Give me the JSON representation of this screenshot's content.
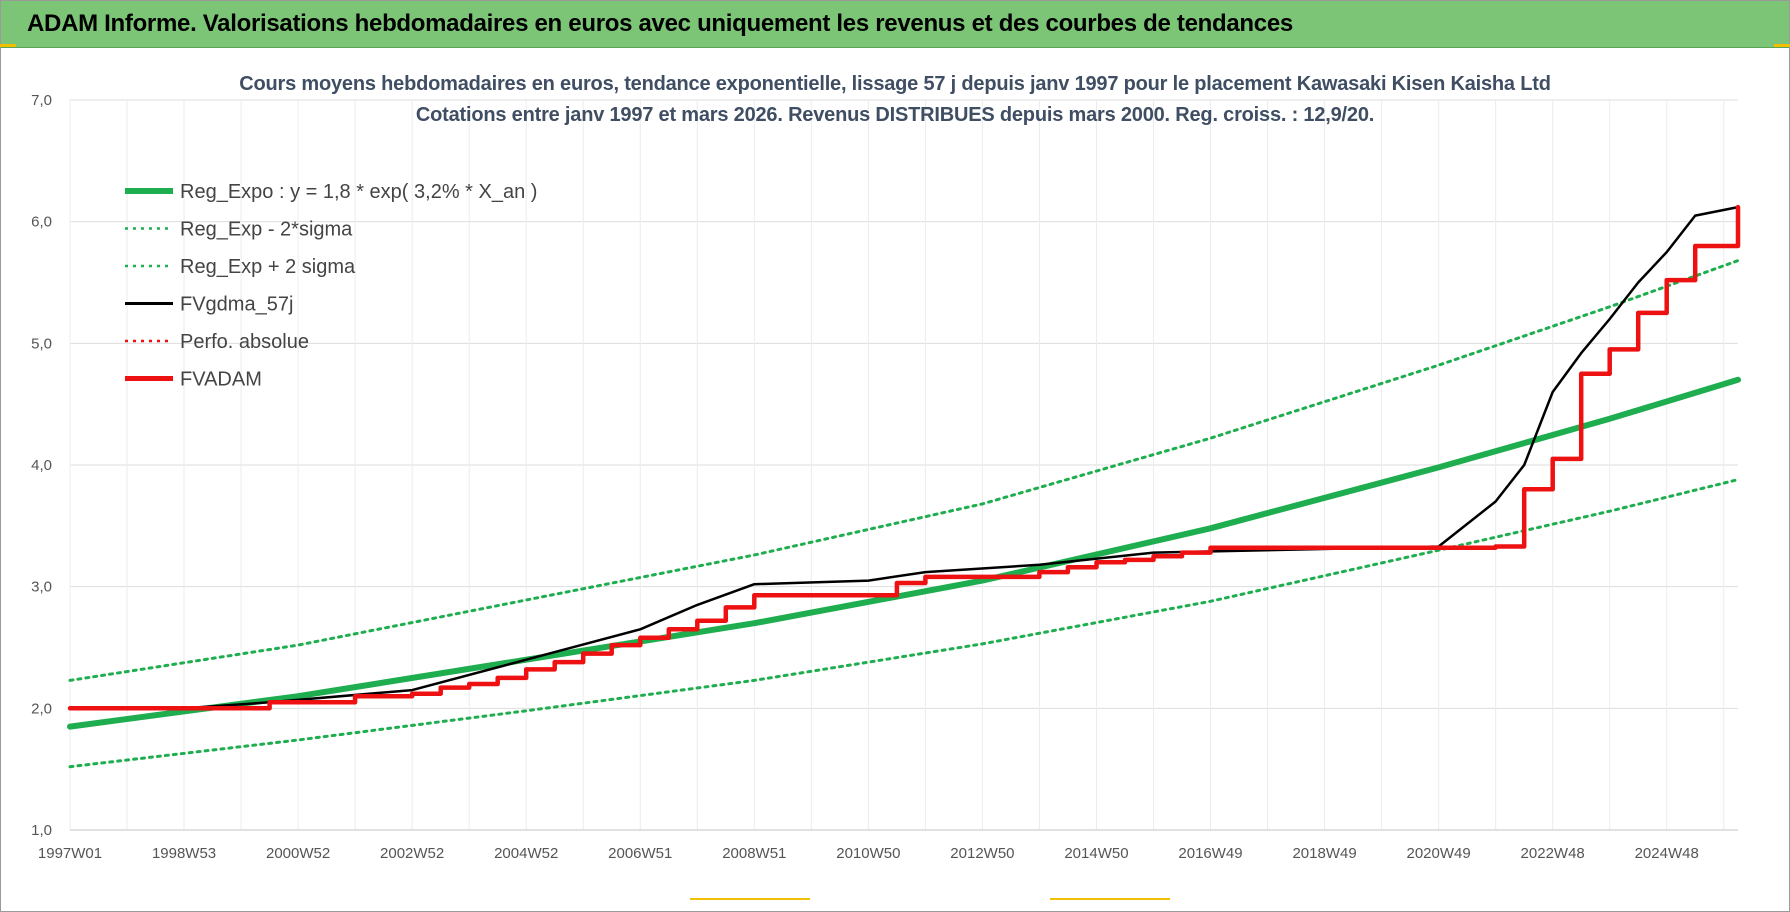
{
  "banner": {
    "title": "ADAM Informe. Valorisations hebdomadaires en euros avec uniquement les revenus et des courbes de tendances"
  },
  "colors": {
    "banner_bg": "#7cc576",
    "reg": "#1fae4f",
    "black": "#000000",
    "red": "#ee1111",
    "grid": "#dddddd"
  },
  "chart_data": {
    "type": "line",
    "title": "Cours moyens hebdomadaires en euros, tendance exponentielle, lissage 57 j depuis janv 1997  pour le placement Kawasaki Kisen Kaisha Ltd",
    "subtitle": "Cotations entre janv 1997 et mars 2026. Revenus DISTRIBUES depuis mars 2000. Reg. croiss. : 12,9/20.",
    "x_range": [
      1997.0,
      2026.25
    ],
    "ylim": [
      1.0,
      7.0
    ],
    "y_ticks": [
      "1,0",
      "2,0",
      "3,0",
      "4,0",
      "5,0",
      "6,0",
      "7,0"
    ],
    "x_ticks": [
      {
        "label": "1997W01",
        "x": 1997.0
      },
      {
        "label": "1998W53",
        "x": 1999.0
      },
      {
        "label": "2000W52",
        "x": 2001.0
      },
      {
        "label": "2002W52",
        "x": 2003.0
      },
      {
        "label": "2004W52",
        "x": 2005.0
      },
      {
        "label": "2006W51",
        "x": 2007.0
      },
      {
        "label": "2008W51",
        "x": 2009.0
      },
      {
        "label": "2010W50",
        "x": 2011.0
      },
      {
        "label": "2012W50",
        "x": 2013.0
      },
      {
        "label": "2014W50",
        "x": 2015.0
      },
      {
        "label": "2016W49",
        "x": 2017.0
      },
      {
        "label": "2018W49",
        "x": 2019.0
      },
      {
        "label": "2020W49",
        "x": 2021.0
      },
      {
        "label": "2022W48",
        "x": 2023.0
      },
      {
        "label": "2024W48",
        "x": 2025.0
      }
    ],
    "grid": true,
    "legend_position": "top-left",
    "series": [
      {
        "name": "Reg_Expo : y = 1,8 * exp( 3,2% *  X_an )",
        "style": "solid-thick",
        "color": "#1fae4f",
        "x": [
          1997.0,
          2001.0,
          2005.0,
          2009.0,
          2013.0,
          2017.0,
          2021.0,
          2024.0,
          2026.25
        ],
        "y": [
          1.85,
          2.1,
          2.4,
          2.7,
          3.05,
          3.48,
          3.98,
          4.38,
          4.7
        ]
      },
      {
        "name": "Reg_Exp - 2*sigma",
        "style": "dotted",
        "color": "#1fae4f",
        "x": [
          1997.0,
          2001.0,
          2005.0,
          2009.0,
          2013.0,
          2017.0,
          2021.0,
          2024.0,
          2026.25
        ],
        "y": [
          1.52,
          1.74,
          1.98,
          2.23,
          2.53,
          2.88,
          3.3,
          3.62,
          3.88
        ]
      },
      {
        "name": "Reg_Exp + 2 sigma",
        "style": "dotted",
        "color": "#1fae4f",
        "x": [
          1997.0,
          2001.0,
          2005.0,
          2009.0,
          2013.0,
          2017.0,
          2021.0,
          2024.0,
          2026.25
        ],
        "y": [
          2.23,
          2.52,
          2.89,
          3.26,
          3.68,
          4.22,
          4.82,
          5.3,
          5.68
        ]
      },
      {
        "name": "FVgdma_57j",
        "style": "solid-thin",
        "color": "#000000",
        "x": [
          1997.0,
          1999.0,
          2000.5,
          2003.0,
          2005.0,
          2007.0,
          2008.0,
          2009.0,
          2011.0,
          2012.0,
          2014.0,
          2016.0,
          2021.0,
          2022.0,
          2022.5,
          2023.0,
          2023.5,
          2024.0,
          2024.5,
          2025.0,
          2025.5,
          2026.25
        ],
        "y": [
          2.0,
          2.0,
          2.05,
          2.15,
          2.4,
          2.65,
          2.85,
          3.02,
          3.05,
          3.12,
          3.18,
          3.28,
          3.33,
          3.7,
          4.0,
          4.6,
          4.92,
          5.2,
          5.5,
          5.75,
          6.05,
          6.12
        ]
      },
      {
        "name": "Perfo. absolue",
        "style": "dotted",
        "color": "#ee1111",
        "x": [],
        "y": []
      },
      {
        "name": "FVADAM",
        "style": "step-thick",
        "color": "#ee1111",
        "x": [
          1997.0,
          2000.25,
          2000.5,
          2001.0,
          2002.0,
          2003.0,
          2003.5,
          2004.0,
          2004.5,
          2005.0,
          2005.5,
          2006.0,
          2006.5,
          2007.0,
          2007.5,
          2008.0,
          2008.5,
          2009.0,
          2011.5,
          2012.0,
          2014.0,
          2014.5,
          2015.0,
          2015.5,
          2016.0,
          2016.5,
          2017.0,
          2020.0,
          2022.0,
          2022.5,
          2023.0,
          2023.5,
          2024.0,
          2024.5,
          2025.0,
          2025.5,
          2026.25
        ],
        "y": [
          2.0,
          2.0,
          2.05,
          2.05,
          2.1,
          2.12,
          2.17,
          2.2,
          2.25,
          2.32,
          2.38,
          2.45,
          2.52,
          2.58,
          2.65,
          2.72,
          2.83,
          2.93,
          3.03,
          3.08,
          3.12,
          3.16,
          3.2,
          3.22,
          3.25,
          3.28,
          3.32,
          3.32,
          3.33,
          3.8,
          4.05,
          4.75,
          4.95,
          5.25,
          5.52,
          5.8,
          6.12
        ]
      }
    ]
  }
}
